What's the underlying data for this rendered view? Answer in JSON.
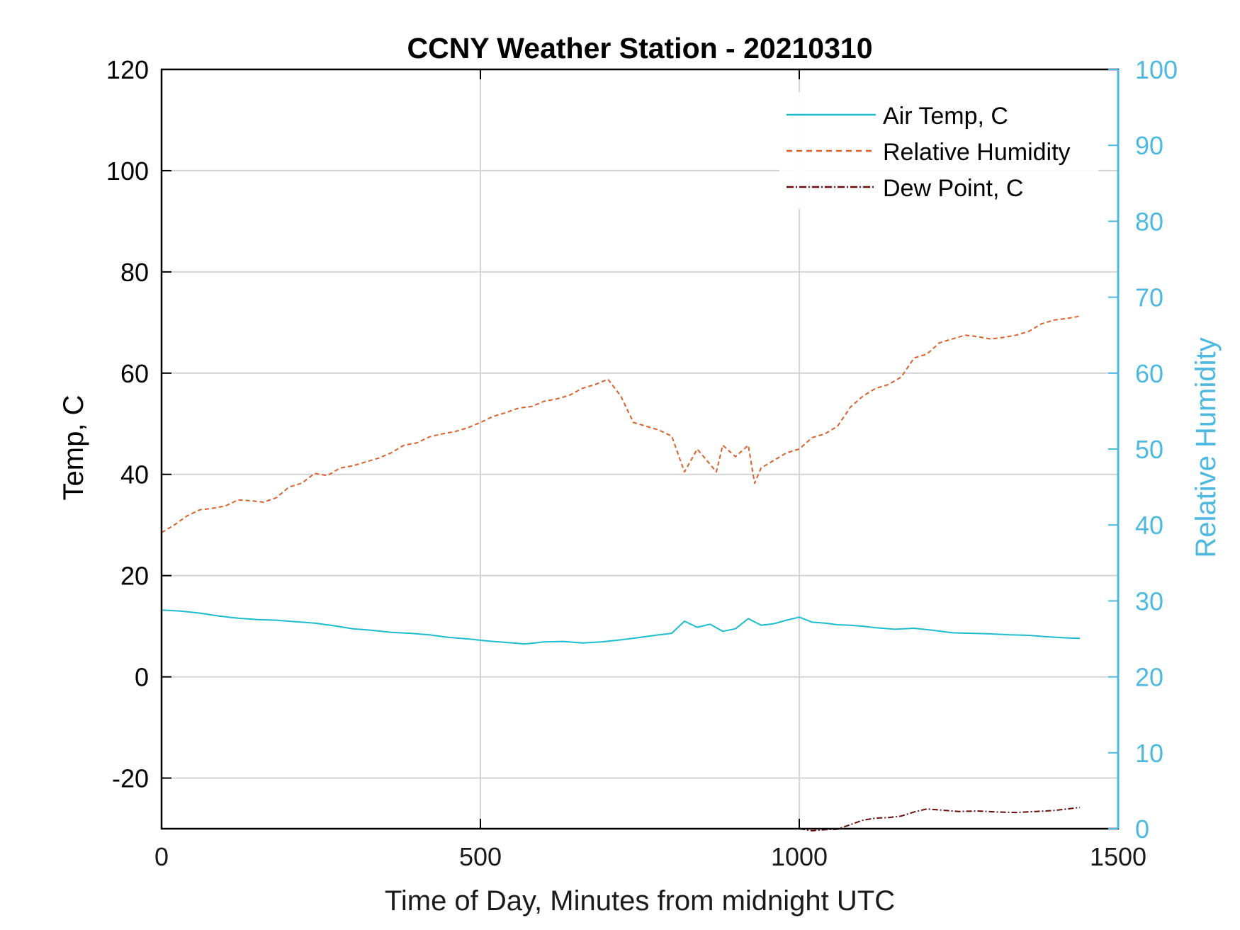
{
  "chart_data": {
    "type": "line",
    "title": "CCNY Weather Station - 20210310",
    "xlabel": "Time of Day, Minutes from midnight UTC",
    "ylabel_left": "Temp, C",
    "ylabel_right": "Relative Humidity",
    "xlim": [
      0,
      1500
    ],
    "ylim_left": [
      -30,
      120
    ],
    "ylim_right": [
      0,
      100
    ],
    "xticks": [
      0,
      500,
      1000,
      1500
    ],
    "xtick_labels": [
      "0",
      "500",
      "1000",
      "1500"
    ],
    "yticks_left": [
      -20,
      0,
      20,
      40,
      60,
      80,
      100,
      120
    ],
    "ytick_labels_left": [
      "-20",
      "0",
      "20",
      "40",
      "60",
      "80",
      "100",
      "120"
    ],
    "yticks_right": [
      0,
      10,
      20,
      30,
      40,
      50,
      60,
      70,
      80,
      90,
      100
    ],
    "ytick_labels_right": [
      "0",
      "10",
      "20",
      "30",
      "40",
      "50",
      "60",
      "70",
      "80",
      "90",
      "100"
    ],
    "grid": true,
    "legend_position": "top-right",
    "colors": {
      "air_temp": "#1cbccf",
      "humidity": "#d9602a",
      "dew_point": "#6b0a0a",
      "right_axis": "#4db8e0",
      "axis": "#000000",
      "grid": "#d4d4d4"
    },
    "series": [
      {
        "name": "Air Temp, C",
        "axis": "left",
        "style": "solid",
        "x": [
          0,
          30,
          60,
          90,
          120,
          150,
          180,
          210,
          240,
          270,
          300,
          330,
          360,
          390,
          420,
          450,
          480,
          510,
          540,
          570,
          600,
          630,
          660,
          690,
          720,
          750,
          780,
          800,
          820,
          840,
          860,
          880,
          900,
          920,
          940,
          960,
          980,
          1000,
          1020,
          1040,
          1060,
          1080,
          1100,
          1120,
          1150,
          1180,
          1210,
          1240,
          1270,
          1300,
          1330,
          1360,
          1390,
          1420,
          1440
        ],
        "y": [
          13.2,
          13,
          12.6,
          12,
          11.6,
          11.3,
          11.2,
          10.9,
          10.6,
          10.1,
          9.5,
          9.2,
          8.8,
          8.6,
          8.3,
          7.8,
          7.5,
          7.1,
          6.8,
          6.5,
          6.9,
          7.0,
          6.7,
          6.9,
          7.3,
          7.8,
          8.3,
          8.6,
          11.0,
          9.8,
          10.4,
          9.0,
          9.5,
          11.5,
          10.2,
          10.5,
          11.2,
          11.8,
          10.8,
          10.6,
          10.3,
          10.2,
          10.0,
          9.7,
          9.4,
          9.6,
          9.2,
          8.7,
          8.6,
          8.5,
          8.3,
          8.2,
          7.9,
          7.7,
          7.6
        ]
      },
      {
        "name": "Relative Humidity",
        "axis": "right",
        "style": "dashed",
        "x": [
          0,
          20,
          40,
          60,
          80,
          100,
          120,
          140,
          160,
          180,
          200,
          220,
          240,
          260,
          280,
          300,
          320,
          340,
          360,
          380,
          400,
          420,
          440,
          460,
          480,
          500,
          520,
          540,
          560,
          580,
          600,
          620,
          640,
          660,
          680,
          700,
          720,
          740,
          760,
          780,
          800,
          820,
          840,
          860,
          870,
          880,
          900,
          920,
          930,
          940,
          960,
          980,
          1000,
          1020,
          1040,
          1060,
          1080,
          1100,
          1120,
          1140,
          1160,
          1180,
          1200,
          1220,
          1240,
          1260,
          1280,
          1300,
          1320,
          1340,
          1360,
          1380,
          1400,
          1420,
          1440
        ],
        "y": [
          39.0,
          40.0,
          41.2,
          42.0,
          42.2,
          42.5,
          43.3,
          43.2,
          43.0,
          43.6,
          45.0,
          45.5,
          46.8,
          46.5,
          47.5,
          47.8,
          48.3,
          48.8,
          49.5,
          50.5,
          50.8,
          51.6,
          52.0,
          52.3,
          52.8,
          53.5,
          54.3,
          54.8,
          55.4,
          55.6,
          56.3,
          56.6,
          57.1,
          58.0,
          58.5,
          59.2,
          57.0,
          53.5,
          53.0,
          52.5,
          51.7,
          47.0,
          50.0,
          48.0,
          47.0,
          50.5,
          49.0,
          50.5,
          45.5,
          47.5,
          48.5,
          49.5,
          50.0,
          51.5,
          52.0,
          53.0,
          55.5,
          57.0,
          58.0,
          58.5,
          59.5,
          62.0,
          62.5,
          64.0,
          64.5,
          65.0,
          64.8,
          64.5,
          64.7,
          65.0,
          65.5,
          66.5,
          67.0,
          67.2,
          67.5
        ]
      },
      {
        "name": "Dew Point, C",
        "axis": "left",
        "style": "dash-dot",
        "x": [
          1000,
          1020,
          1040,
          1060,
          1080,
          1100,
          1120,
          1140,
          1160,
          1180,
          1200,
          1220,
          1250,
          1280,
          1310,
          1340,
          1370,
          1400,
          1420,
          1440
        ],
        "y": [
          -30.0,
          -30.4,
          -30.2,
          -30.1,
          -29.2,
          -28.3,
          -27.9,
          -27.8,
          -27.5,
          -26.7,
          -26.1,
          -26.3,
          -26.6,
          -26.5,
          -26.7,
          -26.8,
          -26.6,
          -26.4,
          -26.1,
          -25.8
        ]
      }
    ]
  }
}
